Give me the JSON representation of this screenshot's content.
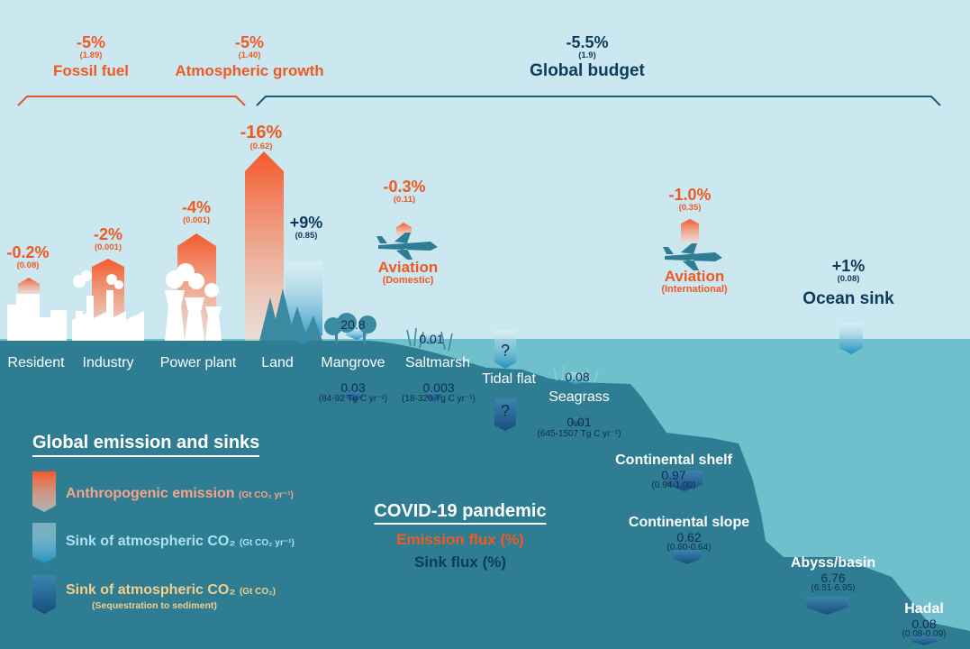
{
  "top": {
    "fossil": {
      "pct": "-5%",
      "value": "(1.89)",
      "label": "Fossil fuel"
    },
    "atmos": {
      "pct": "-5%",
      "value": "(1.40)",
      "label": "Atmospheric growth"
    },
    "budget": {
      "pct": "-5.5%",
      "value": "(1.9)",
      "label": "Global budget"
    }
  },
  "emissions": {
    "resident": {
      "pct": "-0.2%",
      "value": "(0.08)",
      "label": "Resident"
    },
    "industry": {
      "pct": "-2%",
      "value": "(0.001)",
      "label": "Industry"
    },
    "power": {
      "pct": "-4%",
      "value": "(0.001)",
      "label": "Power plant"
    },
    "land": {
      "pct": "-16%",
      "value": "(0.62)",
      "label": "Land"
    },
    "land_sink": {
      "pct": "+9%",
      "value": "(0.85)"
    },
    "aviation_dom": {
      "pct": "-0.3%",
      "value": "(0.11)",
      "label": "Aviation",
      "sublabel": "(Domestic)"
    },
    "aviation_int": {
      "pct": "-1.0%",
      "value": "(0.35)",
      "label": "Aviation",
      "sublabel": "(International)"
    },
    "ocean": {
      "pct": "+1%",
      "value": "(0.08)",
      "label": "Ocean sink"
    }
  },
  "coastal": {
    "mangrove": {
      "label": "Mangrove",
      "sink": "20.8",
      "seq": "0.03",
      "range": "(84-92 Tg C yr⁻¹)"
    },
    "saltmarsh": {
      "label": "Saltmarsh",
      "sink": "0.01",
      "seq": "0.003",
      "range": "(18-320 Tg C yr⁻¹)"
    },
    "tidal": {
      "label": "Tidal flat",
      "sink": "?",
      "seq": "?"
    },
    "seagrass": {
      "label": "Seagrass",
      "sink": "0.08",
      "seq": "0.01",
      "range": "(645-1507 Tg C yr⁻¹)"
    }
  },
  "deep": {
    "shelf": {
      "label": "Continental shelf",
      "value": "0.97",
      "range": "(0.94-1.00)"
    },
    "slope": {
      "label": "Continental slope",
      "value": "0.62",
      "range": "(0.60-0.64)"
    },
    "abyss": {
      "label": "Abyss/basin",
      "value": "6.76",
      "range": "(6.51-6.95)"
    },
    "hadal": {
      "label": "Hadal",
      "value": "0.08",
      "range": "(0.08-0.09)"
    }
  },
  "legend": {
    "title": "Global emission and sinks",
    "emission": {
      "label": "Anthropogenic emission",
      "unit": "(Gt CO₂ yr⁻¹)"
    },
    "sink": {
      "label": "Sink of atmospheric CO₂",
      "unit": "(Gt CO₂ yr⁻¹)"
    },
    "seq": {
      "label": "Sink of atmospheric CO₂",
      "unit": "(Gt CO₂)",
      "sublabel": "(Sequestration to sediment)"
    }
  },
  "covid": {
    "title": "COVID-19 pandemic",
    "emission": "Emission flux (%)",
    "sink": "Sink flux (%)"
  },
  "colors": {
    "emission": "#f05a22",
    "sink": "#0e3a5c",
    "sky": "#cbe7f0",
    "sea": "#6fbfcd",
    "land": "#2e7d92"
  }
}
